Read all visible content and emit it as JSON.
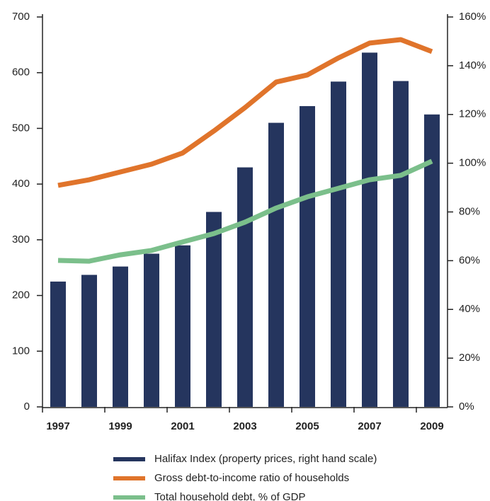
{
  "chart_data": {
    "type": "bar-line",
    "categories": [
      "1997",
      null,
      "1999",
      null,
      "2001",
      null,
      "2003",
      null,
      "2005",
      null,
      "2007",
      null,
      "2009"
    ],
    "series": [
      {
        "name": "Halifax Index (property prices, right hand scale)",
        "type": "bar",
        "color": "#25355e",
        "values": [
          225,
          237,
          252,
          275,
          290,
          350,
          430,
          510,
          540,
          584,
          636,
          585,
          525
        ]
      },
      {
        "name": "Gross debt-to-income ratio of households",
        "type": "line",
        "axis": "y2",
        "color": "#e0742b",
        "values": [
          90.9,
          93.2,
          96.4,
          99.6,
          104.2,
          113.2,
          122.8,
          133.3,
          136.2,
          143.2,
          149.3,
          150.7,
          145.8
        ]
      },
      {
        "name": "Total household debt, % of GDP",
        "type": "line",
        "axis": "y2",
        "color": "#7bbf8b",
        "values": [
          60.1,
          59.8,
          62.4,
          64.2,
          67.7,
          71.1,
          75.8,
          81.6,
          86.2,
          89.7,
          93.2,
          95.0,
          100.8
        ]
      }
    ],
    "ylim": [
      0,
      700
    ],
    "yticks": [
      0,
      100,
      200,
      300,
      400,
      500,
      600,
      700
    ],
    "y2lim": [
      0,
      160
    ],
    "y2ticks": [
      {
        "value": 0,
        "label": "0%"
      },
      {
        "value": 20,
        "label": "20%"
      },
      {
        "value": 40,
        "label": "40%"
      },
      {
        "value": 60,
        "label": "60%"
      },
      {
        "value": 80,
        "label": "80%"
      },
      {
        "value": 100,
        "label": "100%"
      },
      {
        "value": 120,
        "label": "120%"
      },
      {
        "value": 140,
        "label": "140%"
      },
      {
        "value": 160,
        "label": "160%"
      }
    ],
    "legend": "bottom"
  }
}
